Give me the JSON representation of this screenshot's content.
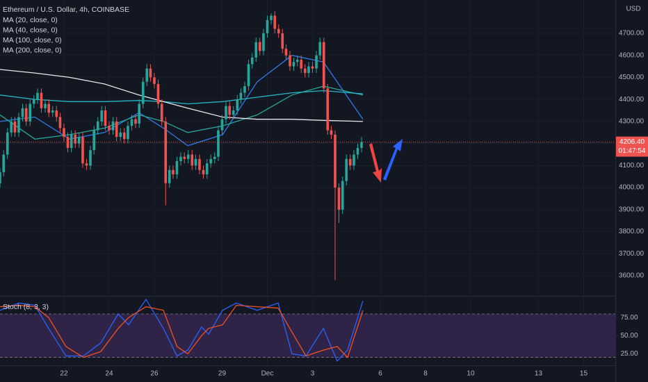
{
  "chart_data": [
    {
      "type": "candlestick",
      "title": "Ethereum / U.S. Dollar, 4h, COINBASE",
      "currency": "USD",
      "up_color": "#26a69a",
      "down_color": "#ef5350",
      "grid": true,
      "x": [
        19.17,
        19.33,
        19.5,
        19.67,
        19.83,
        20,
        20.17,
        20.33,
        20.5,
        20.67,
        20.83,
        21,
        21.17,
        21.33,
        21.5,
        21.67,
        21.83,
        22,
        22.17,
        22.33,
        22.5,
        22.67,
        22.83,
        23,
        23.17,
        23.33,
        23.5,
        23.67,
        23.83,
        24,
        24.17,
        24.33,
        24.5,
        24.67,
        24.83,
        25,
        25.17,
        25.33,
        25.5,
        25.67,
        25.83,
        26,
        26.17,
        26.33,
        26.5,
        26.67,
        26.83,
        27,
        27.17,
        27.33,
        27.5,
        27.67,
        27.83,
        28,
        28.17,
        28.33,
        28.5,
        28.67,
        28.83,
        29,
        29.17,
        29.33,
        29.5,
        29.67,
        29.83,
        30,
        30.17,
        30.33,
        30.5,
        30.67,
        30.83,
        31,
        31.17,
        31.33,
        31.5,
        31.67,
        31.83,
        32,
        32.17,
        32.33,
        32.5,
        32.67,
        32.83,
        33,
        33.17,
        33.33,
        33.5,
        33.67,
        33.83,
        34,
        34.17,
        34.33,
        34.5,
        34.67,
        34.83,
        35,
        35.17
      ],
      "open": [
        4020,
        4070,
        4150,
        4250,
        4300,
        4250,
        4320,
        4360,
        4300,
        4380,
        4400,
        4430,
        4360,
        4380,
        4340,
        4350,
        4320,
        4270,
        4230,
        4180,
        4240,
        4200,
        4230,
        4110,
        4100,
        4170,
        4260,
        4300,
        4350,
        4280,
        4260,
        4300,
        4230,
        4250,
        4220,
        4280,
        4310,
        4290,
        4380,
        4480,
        4540,
        4500,
        4470,
        4380,
        4300,
        4020,
        4080,
        4060,
        4120,
        4140,
        4130,
        4150,
        4100,
        4130,
        4080,
        4060,
        4110,
        4130,
        4140,
        4260,
        4310,
        4370,
        4330,
        4350,
        4400,
        4430,
        4460,
        4560,
        4590,
        4660,
        4620,
        4700,
        4760,
        4780,
        4720,
        4700,
        4630,
        4600,
        4550,
        4570,
        4580,
        4540,
        4520,
        4550,
        4540,
        4600,
        4660,
        4450,
        4260,
        4240,
        4000,
        3900,
        4030,
        4130,
        4100,
        4150,
        4180
      ],
      "high": [
        4090,
        4170,
        4270,
        4320,
        4320,
        4340,
        4380,
        4380,
        4400,
        4420,
        4450,
        4450,
        4400,
        4400,
        4370,
        4370,
        4340,
        4290,
        4250,
        4260,
        4260,
        4250,
        4250,
        4130,
        4190,
        4280,
        4320,
        4370,
        4370,
        4300,
        4320,
        4320,
        4270,
        4270,
        4300,
        4330,
        4330,
        4400,
        4500,
        4560,
        4560,
        4520,
        4490,
        4400,
        4320,
        4100,
        4100,
        4140,
        4160,
        4160,
        4170,
        4170,
        4150,
        4150,
        4100,
        4130,
        4150,
        4160,
        4280,
        4330,
        4390,
        4390,
        4370,
        4420,
        4450,
        4480,
        4580,
        4610,
        4680,
        4680,
        4720,
        4780,
        4790,
        4800,
        4740,
        4720,
        4650,
        4620,
        4590,
        4600,
        4600,
        4560,
        4570,
        4570,
        4620,
        4680,
        4680,
        4470,
        4280,
        4260,
        4020,
        4050,
        4150,
        4150,
        4170,
        4200,
        4230
      ],
      "low": [
        4000,
        4050,
        4130,
        4230,
        4230,
        4230,
        4300,
        4280,
        4280,
        4360,
        4380,
        4340,
        4340,
        4320,
        4320,
        4300,
        4250,
        4210,
        4160,
        4160,
        4180,
        4180,
        4090,
        4080,
        4080,
        4150,
        4240,
        4280,
        4260,
        4240,
        4240,
        4210,
        4210,
        4200,
        4200,
        4260,
        4270,
        4270,
        4360,
        4460,
        4480,
        4450,
        4360,
        4280,
        3920,
        4000,
        4040,
        4040,
        4100,
        4110,
        4110,
        4080,
        4080,
        4060,
        4040,
        4040,
        4090,
        4110,
        4120,
        4240,
        4290,
        4310,
        4310,
        4330,
        4380,
        4410,
        4440,
        4540,
        4570,
        4600,
        4600,
        4680,
        4740,
        4700,
        4680,
        4610,
        4580,
        4530,
        4530,
        4550,
        4520,
        4500,
        4500,
        4520,
        4520,
        4580,
        4430,
        4240,
        4220,
        3580,
        3840,
        3880,
        4010,
        4080,
        4080,
        4130,
        4160
      ],
      "close": [
        4070,
        4150,
        4250,
        4300,
        4250,
        4320,
        4360,
        4300,
        4380,
        4400,
        4430,
        4360,
        4380,
        4340,
        4350,
        4320,
        4270,
        4230,
        4180,
        4240,
        4200,
        4230,
        4110,
        4100,
        4170,
        4260,
        4300,
        4350,
        4280,
        4260,
        4300,
        4230,
        4250,
        4220,
        4280,
        4310,
        4290,
        4380,
        4480,
        4540,
        4500,
        4470,
        4380,
        4300,
        4020,
        4080,
        4060,
        4120,
        4140,
        4130,
        4150,
        4100,
        4130,
        4080,
        4060,
        4110,
        4130,
        4140,
        4260,
        4310,
        4370,
        4330,
        4350,
        4400,
        4430,
        4460,
        4560,
        4590,
        4660,
        4620,
        4700,
        4760,
        4780,
        4720,
        4700,
        4630,
        4600,
        4550,
        4570,
        4580,
        4540,
        4520,
        4550,
        4540,
        4600,
        4660,
        4450,
        4260,
        4240,
        4000,
        3900,
        4030,
        4130,
        4100,
        4150,
        4180,
        4206.4
      ],
      "series": [
        {
          "name": "MA (20, close, 0)",
          "color": "#2f7ce8",
          "x": [
            19.17,
            20.71,
            22.25,
            23.79,
            25.32,
            26.4,
            27.48,
            29.02,
            30.55,
            32.09,
            33.48,
            35.23
          ],
          "values": [
            4300,
            4320,
            4220,
            4250,
            4340,
            4270,
            4190,
            4240,
            4480,
            4600,
            4570,
            4310
          ]
        },
        {
          "name": "MA (40, close, 0)",
          "color": "#26a69a",
          "x": [
            19.17,
            20.71,
            22.25,
            23.79,
            25.32,
            26.4,
            27.48,
            29.02,
            30.55,
            32.09,
            33.48,
            35.23
          ],
          "values": [
            4330,
            4220,
            4240,
            4270,
            4330,
            4300,
            4250,
            4280,
            4330,
            4420,
            4460,
            4420
          ]
        },
        {
          "name": "MA (100, close, 0)",
          "color": "#22b8c8",
          "x": [
            19.17,
            20.71,
            22.25,
            23.79,
            25.32,
            26.4,
            27.48,
            29.02,
            30.55,
            32.09,
            33.48,
            35.23
          ],
          "values": [
            4420,
            4400,
            4390,
            4390,
            4395,
            4390,
            4380,
            4390,
            4410,
            4430,
            4440,
            4425
          ]
        },
        {
          "name": "MA (200, close, 0)",
          "color": "#e8e8e8",
          "x": [
            19.17,
            20.71,
            22.25,
            23.79,
            25.32,
            26.4,
            27.48,
            29.02,
            30.55,
            32.09,
            33.48,
            35.23
          ],
          "values": [
            4536,
            4520,
            4500,
            4470,
            4420,
            4390,
            4360,
            4320,
            4310,
            4310,
            4305,
            4300
          ]
        }
      ],
      "last_price": {
        "value": 4206.4,
        "label": "4206.40"
      },
      "countdown": "01:47:54",
      "xlim": [
        19.17,
        46.4
      ],
      "xticks": [
        22,
        24,
        26,
        29,
        {
          "value": 31,
          "label": "Dec"
        },
        {
          "value": 33,
          "label": "3"
        },
        {
          "value": 36,
          "label": "6"
        },
        {
          "value": 38,
          "label": "8"
        },
        {
          "value": 40,
          "label": "10"
        },
        {
          "value": 43,
          "label": "13"
        },
        {
          "value": 45,
          "label": "15"
        }
      ],
      "ylim": [
        3512,
        4851
      ],
      "yticks": [
        {
          "value": 3600,
          "label": "3600.00"
        },
        {
          "value": 3700,
          "label": "3700.00"
        },
        {
          "value": 3800,
          "label": "3800.00"
        },
        {
          "value": 3900,
          "label": "3900.00"
        },
        {
          "value": 4000,
          "label": "4000.00"
        },
        {
          "value": 4100,
          "label": "4100.00"
        },
        {
          "value": 4200,
          "label": "4200.00"
        },
        {
          "value": 4300,
          "label": "4300.00"
        },
        {
          "value": 4400,
          "label": "4400.00"
        },
        {
          "value": 4500,
          "label": "4500.00"
        },
        {
          "value": 4600,
          "label": "4600.00"
        },
        {
          "value": 4700,
          "label": "4700.00"
        }
      ]
    },
    {
      "type": "line",
      "title": "Stoch (8, 3, 3)",
      "x": [
        19.17,
        20,
        20.71,
        21.32,
        22.09,
        22.86,
        23.63,
        24.4,
        24.86,
        25.63,
        26.4,
        27,
        27.48,
        28.09,
        28.4,
        29.02,
        29.63,
        30.55,
        31.48,
        32.09,
        32.71,
        33.48,
        34.09,
        34.55,
        35.23
      ],
      "series": [
        {
          "color": "#2962ff",
          "values": [
            85,
            95,
            92,
            60,
            22,
            22,
            40,
            80,
            65,
            100,
            60,
            22,
            30,
            62,
            52,
            85,
            95,
            85,
            95,
            25,
            22,
            60,
            15,
            30,
            98
          ]
        },
        {
          "color": "#f4511e",
          "values": [
            90,
            92,
            90,
            75,
            35,
            20,
            28,
            60,
            75,
            90,
            85,
            35,
            25,
            50,
            60,
            65,
            92,
            90,
            88,
            55,
            22,
            30,
            35,
            20,
            85
          ]
        }
      ],
      "band": [
        20,
        80
      ],
      "band_color": "#2f2447",
      "ylim": [
        10,
        103
      ],
      "yticks": [
        {
          "value": 25,
          "label": "25.00"
        },
        {
          "value": 50,
          "label": "50.00"
        },
        {
          "value": 75,
          "label": "75.00"
        }
      ]
    }
  ]
}
